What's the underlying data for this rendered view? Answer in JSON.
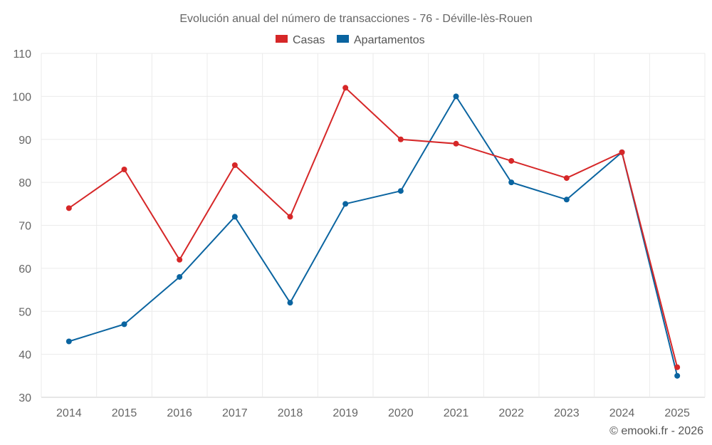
{
  "chart_data": {
    "type": "line",
    "title": "Evolución anual del número de transacciones - 76 - Déville-lès-Rouen",
    "categories": [
      "2014",
      "2015",
      "2016",
      "2017",
      "2018",
      "2019",
      "2020",
      "2021",
      "2022",
      "2023",
      "2024",
      "2025"
    ],
    "series": [
      {
        "name": "Casas",
        "color": "#d62728",
        "values": [
          74,
          83,
          62,
          84,
          72,
          102,
          90,
          89,
          85,
          81,
          87,
          37
        ]
      },
      {
        "name": "Apartamentos",
        "color": "#0a64a0",
        "values": [
          43,
          47,
          58,
          72,
          52,
          75,
          78,
          100,
          80,
          76,
          87,
          35
        ]
      }
    ],
    "ylim": [
      30,
      110
    ],
    "yticks": [
      30,
      40,
      50,
      60,
      70,
      80,
      90,
      100,
      110
    ],
    "xlabel": "",
    "ylabel": "",
    "grid": true,
    "legend_position": "top-center"
  },
  "credit": "© emooki.fr - 2026"
}
